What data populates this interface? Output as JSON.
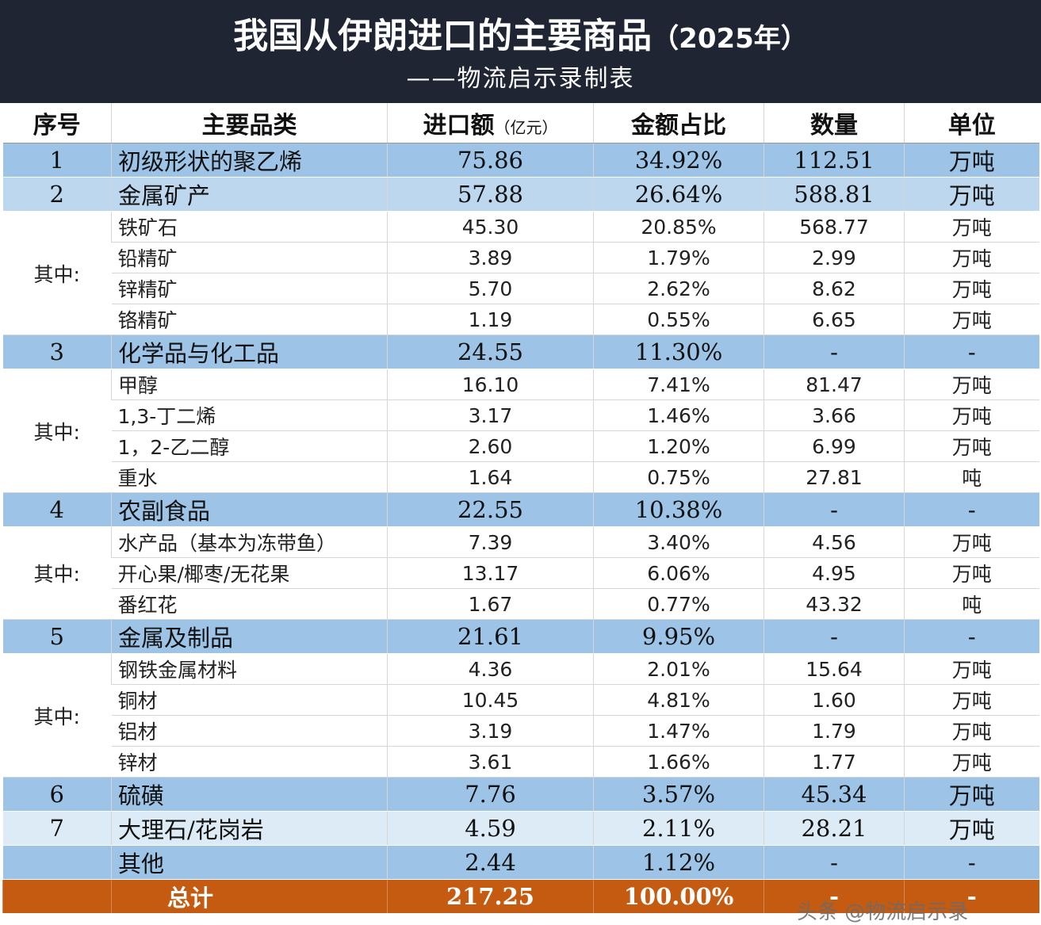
{
  "header": {
    "title": "我国从伊朗进口的主要商品",
    "title_year": "（2025年）",
    "subtitle": "——物流启示录制表"
  },
  "columns": {
    "seq": "序号",
    "category": "主要品类",
    "amount": "进口额",
    "amount_unit": "（亿元）",
    "share": "金额占比",
    "quantity": "数量",
    "unit": "单位"
  },
  "group_label": "其中:",
  "rows": {
    "r1": {
      "seq": "1",
      "name": "初级形状的聚乙烯",
      "amount": "75.86",
      "share": "34.92%",
      "qty": "112.51",
      "unit": "万吨"
    },
    "r2": {
      "seq": "2",
      "name": "金属矿产",
      "amount": "57.88",
      "share": "26.64%",
      "qty": "588.81",
      "unit": "万吨"
    },
    "r2_sub": [
      {
        "name": "铁矿石",
        "amount": "45.30",
        "share": "20.85%",
        "qty": "568.77",
        "unit": "万吨"
      },
      {
        "name": "铅精矿",
        "amount": "3.89",
        "share": "1.79%",
        "qty": "2.99",
        "unit": "万吨"
      },
      {
        "name": "锌精矿",
        "amount": "5.70",
        "share": "2.62%",
        "qty": "8.62",
        "unit": "万吨"
      },
      {
        "name": "铬精矿",
        "amount": "1.19",
        "share": "0.55%",
        "qty": "6.65",
        "unit": "万吨"
      }
    ],
    "r3": {
      "seq": "3",
      "name": "化学品与化工品",
      "amount": "24.55",
      "share": "11.30%",
      "qty": "-",
      "unit": "-"
    },
    "r3_sub": [
      {
        "name": "甲醇",
        "amount": "16.10",
        "share": "7.41%",
        "qty": "81.47",
        "unit": "万吨"
      },
      {
        "name": "1,3-丁二烯",
        "amount": "3.17",
        "share": "1.46%",
        "qty": "3.66",
        "unit": "万吨"
      },
      {
        "name": "1，2-乙二醇",
        "amount": "2.60",
        "share": "1.20%",
        "qty": "6.99",
        "unit": "万吨"
      },
      {
        "name": "重水",
        "amount": "1.64",
        "share": "0.75%",
        "qty": "27.81",
        "unit": "吨"
      }
    ],
    "r4": {
      "seq": "4",
      "name": "农副食品",
      "amount": "22.55",
      "share": "10.38%",
      "qty": "-",
      "unit": "-"
    },
    "r4_sub": [
      {
        "name": "水产品（基本为冻带鱼）",
        "amount": "7.39",
        "share": "3.40%",
        "qty": "4.56",
        "unit": "万吨"
      },
      {
        "name": "开心果/椰枣/无花果",
        "amount": "13.17",
        "share": "6.06%",
        "qty": "4.95",
        "unit": "万吨"
      },
      {
        "name": "番红花",
        "amount": "1.67",
        "share": "0.77%",
        "qty": "43.32",
        "unit": "吨"
      }
    ],
    "r5": {
      "seq": "5",
      "name": "金属及制品",
      "amount": "21.61",
      "share": "9.95%",
      "qty": "-",
      "unit": "-"
    },
    "r5_sub": [
      {
        "name": "钢铁金属材料",
        "amount": "4.36",
        "share": "2.01%",
        "qty": "15.64",
        "unit": "万吨"
      },
      {
        "name": "铜材",
        "amount": "10.45",
        "share": "4.81%",
        "qty": "1.60",
        "unit": "万吨"
      },
      {
        "name": "铝材",
        "amount": "3.19",
        "share": "1.47%",
        "qty": "1.79",
        "unit": "万吨"
      },
      {
        "name": "锌材",
        "amount": "3.61",
        "share": "1.66%",
        "qty": "1.77",
        "unit": "万吨"
      }
    ],
    "r6": {
      "seq": "6",
      "name": "硫磺",
      "amount": "7.76",
      "share": "3.57%",
      "qty": "45.34",
      "unit": "万吨"
    },
    "r7": {
      "seq": "7",
      "name": "大理石/花岗岩",
      "amount": "4.59",
      "share": "2.11%",
      "qty": "28.21",
      "unit": "万吨"
    },
    "other": {
      "name": "其他",
      "amount": "2.44",
      "share": "1.12%",
      "qty": "-",
      "unit": "-"
    },
    "total": {
      "name": "总计",
      "amount": "217.25",
      "share": "100.00%",
      "qty": "-",
      "unit": "-"
    }
  },
  "watermark": "头条 @物流启示录"
}
